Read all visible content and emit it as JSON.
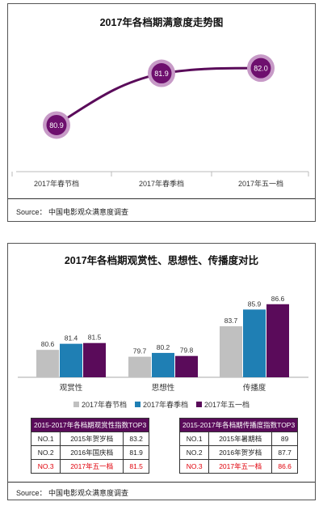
{
  "chart_data": [
    {
      "type": "line",
      "title": "2017年各档期满意度走势图",
      "categories": [
        "2017年春节档",
        "2017年春季档",
        "2017年五一档"
      ],
      "series": [
        {
          "values": [
            80.9,
            81.9,
            82.0
          ]
        }
      ],
      "source": "Source： 中国电影观众满意度调查",
      "colors": {
        "line": "#5a0b5a",
        "marker": "#6e0f6e",
        "halo": "#c79ac7"
      }
    },
    {
      "type": "bar",
      "title": "2017年各档期观赏性、思想性、传播度对比",
      "categories": [
        "观赏性",
        "思想性",
        "传播度"
      ],
      "series": [
        {
          "name": "2017年春节档",
          "values": [
            80.6,
            79.7,
            83.7
          ],
          "color": "#c0c0c0"
        },
        {
          "name": "2017年春季档",
          "values": [
            81.4,
            80.2,
            85.9
          ],
          "color": "#1f7fb4"
        },
        {
          "name": "2017年五一档",
          "values": [
            81.5,
            79.8,
            86.6
          ],
          "color": "#5a0b5a"
        }
      ],
      "legend_position": "bottom",
      "source": "Source： 中国电影观众满意度调查"
    }
  ],
  "tables": [
    {
      "title": "2015-2017年各档期观赏性指数TOP3",
      "rows": [
        [
          "NO.1",
          "2015年贺岁档",
          "83.2"
        ],
        [
          "NO.2",
          "2016年国庆档",
          "81.9"
        ],
        [
          "NO.3",
          "2017年五一档",
          "81.5"
        ]
      ]
    },
    {
      "title": "2015-2017年各档期传播度指数TOP3",
      "rows": [
        [
          "NO.1",
          "2015年暑期档",
          "89"
        ],
        [
          "NO.2",
          "2016年贺岁档",
          "87.7"
        ],
        [
          "NO.3",
          "2017年五一档",
          "86.6"
        ]
      ]
    }
  ]
}
